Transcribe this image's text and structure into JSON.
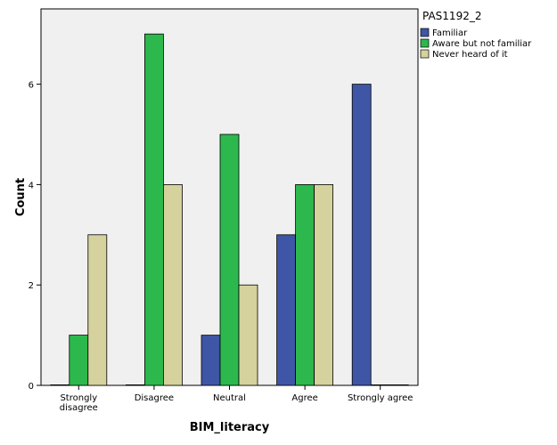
{
  "chart_data": {
    "type": "bar",
    "xlabel": "BIM_literacy",
    "ylabel": "Count",
    "ylim": [
      0,
      7.5
    ],
    "yticks": [
      0,
      2,
      4,
      6
    ],
    "categories": [
      [
        "Strongly",
        "disagree"
      ],
      [
        "Disagree"
      ],
      [
        "Neutral"
      ],
      [
        "Agree"
      ],
      [
        "Strongly agree"
      ]
    ],
    "legend_title": "PAS1192_2",
    "legend_position": "top-right",
    "grid": false,
    "plot_background": "#f0f0f0",
    "series": [
      {
        "name": "Familiar",
        "color": "#3f55a5",
        "values": [
          0,
          0,
          1,
          3,
          6
        ]
      },
      {
        "name": "Aware but not familiar",
        "color": "#2db84d",
        "values": [
          1,
          7,
          5,
          4,
          0
        ]
      },
      {
        "name": "Never heard of it",
        "color": "#d6d29d",
        "values": [
          3,
          4,
          2,
          4,
          0
        ]
      }
    ]
  }
}
